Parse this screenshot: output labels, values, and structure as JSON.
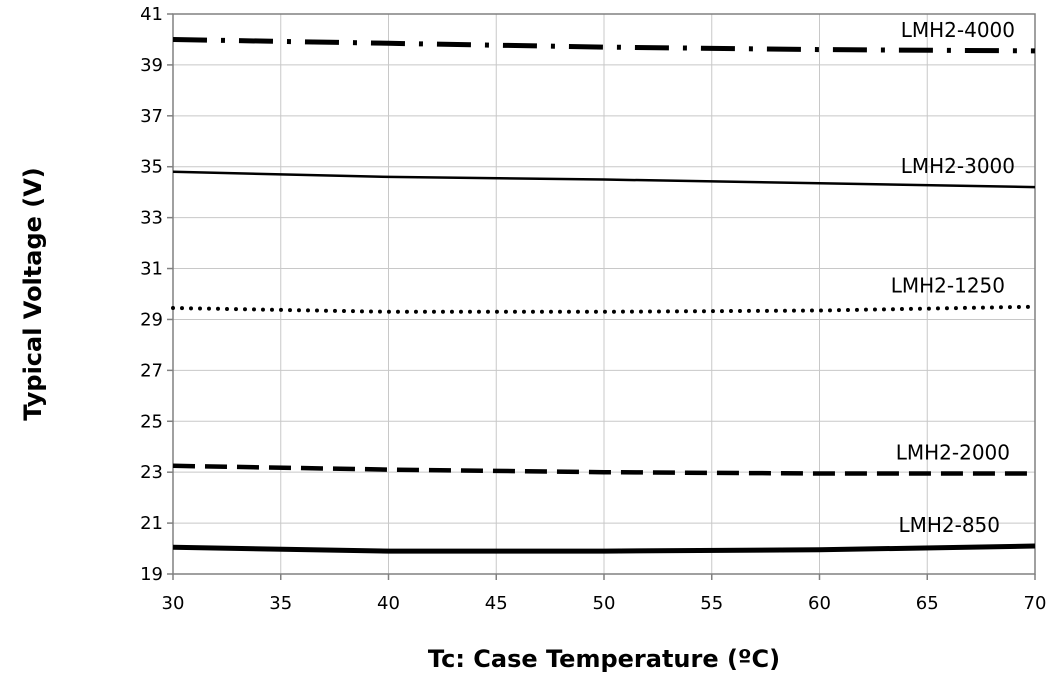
{
  "chart_data": {
    "type": "line",
    "title": "",
    "xlabel": "Tc: Case Temperature (ºC)",
    "ylabel": "Typical Voltage (V)",
    "xlim": [
      30,
      70
    ],
    "ylim": [
      19,
      41
    ],
    "xticks": [
      30,
      35,
      40,
      45,
      50,
      55,
      60,
      65,
      70
    ],
    "yticks": [
      19,
      21,
      23,
      25,
      27,
      29,
      31,
      33,
      35,
      37,
      39,
      41
    ],
    "grid": true,
    "legend": "none (series labeled directly above lines)",
    "series": [
      {
        "name": "LMH2-4000",
        "style": "dash-dot-thick",
        "color": "#000000",
        "x": [
          30,
          40,
          50,
          60,
          70
        ],
        "y": [
          40.0,
          39.85,
          39.7,
          39.6,
          39.55
        ]
      },
      {
        "name": "LMH2-3000",
        "style": "solid-thin",
        "color": "#000000",
        "x": [
          30,
          40,
          50,
          60,
          70
        ],
        "y": [
          34.8,
          34.6,
          34.5,
          34.35,
          34.2
        ]
      },
      {
        "name": "LMH2-1250",
        "style": "dotted",
        "color": "#000000",
        "x": [
          30,
          40,
          50,
          60,
          70
        ],
        "y": [
          29.45,
          29.3,
          29.3,
          29.35,
          29.5
        ]
      },
      {
        "name": "LMH2-2000",
        "style": "dashed-thick",
        "color": "#000000",
        "x": [
          30,
          40,
          50,
          60,
          70
        ],
        "y": [
          23.25,
          23.1,
          23.0,
          22.95,
          22.95
        ]
      },
      {
        "name": "LMH2-850",
        "style": "solid-thick",
        "color": "#000000",
        "x": [
          30,
          40,
          50,
          60,
          70
        ],
        "y": [
          20.05,
          19.9,
          19.9,
          19.95,
          20.1
        ]
      }
    ]
  }
}
